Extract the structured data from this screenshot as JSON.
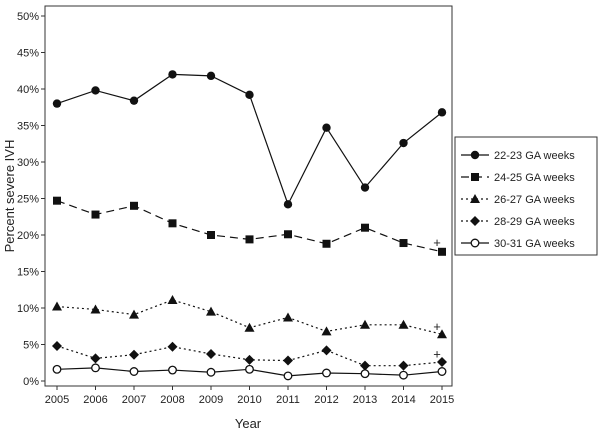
{
  "chart_data": {
    "type": "line",
    "title": "",
    "xlabel": "Year",
    "ylabel": "Percent severe IVH",
    "categories": [
      "2005",
      "2006",
      "2007",
      "2008",
      "2009",
      "2010",
      "2011",
      "2012",
      "2013",
      "2014",
      "2015"
    ],
    "yticks": [
      "0%",
      "5%",
      "10%",
      "15%",
      "20%",
      "25%",
      "30%",
      "35%",
      "40%",
      "45%",
      "50%"
    ],
    "ylim": [
      0,
      50
    ],
    "grid": false,
    "legend_position": "right",
    "series": [
      {
        "name": "22-23 GA weeks",
        "marker": "circle-filled",
        "dash": "solid",
        "values": [
          38.0,
          39.8,
          38.4,
          42.0,
          41.8,
          39.2,
          24.2,
          34.7,
          26.5,
          32.6,
          36.8
        ]
      },
      {
        "name": "24-25 GA weeks",
        "marker": "square-filled",
        "dash": "dashed",
        "values": [
          24.7,
          22.8,
          24.0,
          21.6,
          20.0,
          19.4,
          20.1,
          18.8,
          21.0,
          18.9,
          17.7
        ]
      },
      {
        "name": "26-27 GA weeks",
        "marker": "triangle-filled",
        "dash": "dotted",
        "values": [
          10.2,
          9.8,
          9.1,
          11.1,
          9.5,
          7.3,
          8.7,
          6.8,
          7.7,
          7.7,
          6.4
        ]
      },
      {
        "name": "28-29 GA weeks",
        "marker": "diamond-filled",
        "dash": "dotted",
        "values": [
          4.8,
          3.1,
          3.6,
          4.7,
          3.7,
          2.9,
          2.8,
          4.2,
          2.1,
          2.1,
          2.6
        ]
      },
      {
        "name": "30-31 GA weeks",
        "marker": "circle-open",
        "dash": "solid",
        "values": [
          1.6,
          1.8,
          1.3,
          1.5,
          1.2,
          1.6,
          0.7,
          1.1,
          1.0,
          0.8,
          1.3
        ]
      }
    ],
    "annotations": [
      {
        "text": "+",
        "x": "2015",
        "y": 18.9
      },
      {
        "text": "+",
        "x": "2015",
        "y": 7.4
      },
      {
        "text": "+",
        "x": "2015",
        "y": 3.6
      }
    ]
  }
}
